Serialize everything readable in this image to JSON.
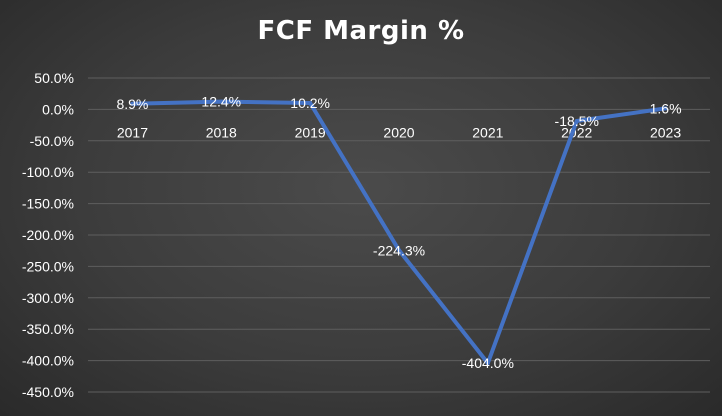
{
  "chart_data": {
    "type": "line",
    "title": "FCF Margin %",
    "categories": [
      "2017",
      "2018",
      "2019",
      "2020",
      "2021",
      "2022",
      "2023"
    ],
    "series": [
      {
        "values": [
          8.9,
          12.4,
          10.2,
          -224.3,
          -404.0,
          -18.5,
          1.6
        ],
        "data_labels": [
          "8.9%",
          "12.4%",
          "10.2%",
          "-224.3%",
          "-404.0%",
          "-18.5%",
          "1.6%"
        ]
      }
    ],
    "ylim": [
      -450,
      50
    ],
    "y_ticks": [
      50,
      0,
      -50,
      -100,
      -150,
      -200,
      -250,
      -300,
      -350,
      -400,
      -450
    ],
    "y_tick_labels": [
      "50.0%",
      "0.0%",
      "-50.0%",
      "-100.0%",
      "-150.0%",
      "-200.0%",
      "-250.0%",
      "-300.0%",
      "-350.0%",
      "-400.0%",
      "-450.0%"
    ],
    "grid": true,
    "legend": "none",
    "x_axis_position": "at zero",
    "colors": {
      "line": "#4472c4",
      "text": "#ffffff",
      "grid": "#5e5e5e"
    }
  }
}
